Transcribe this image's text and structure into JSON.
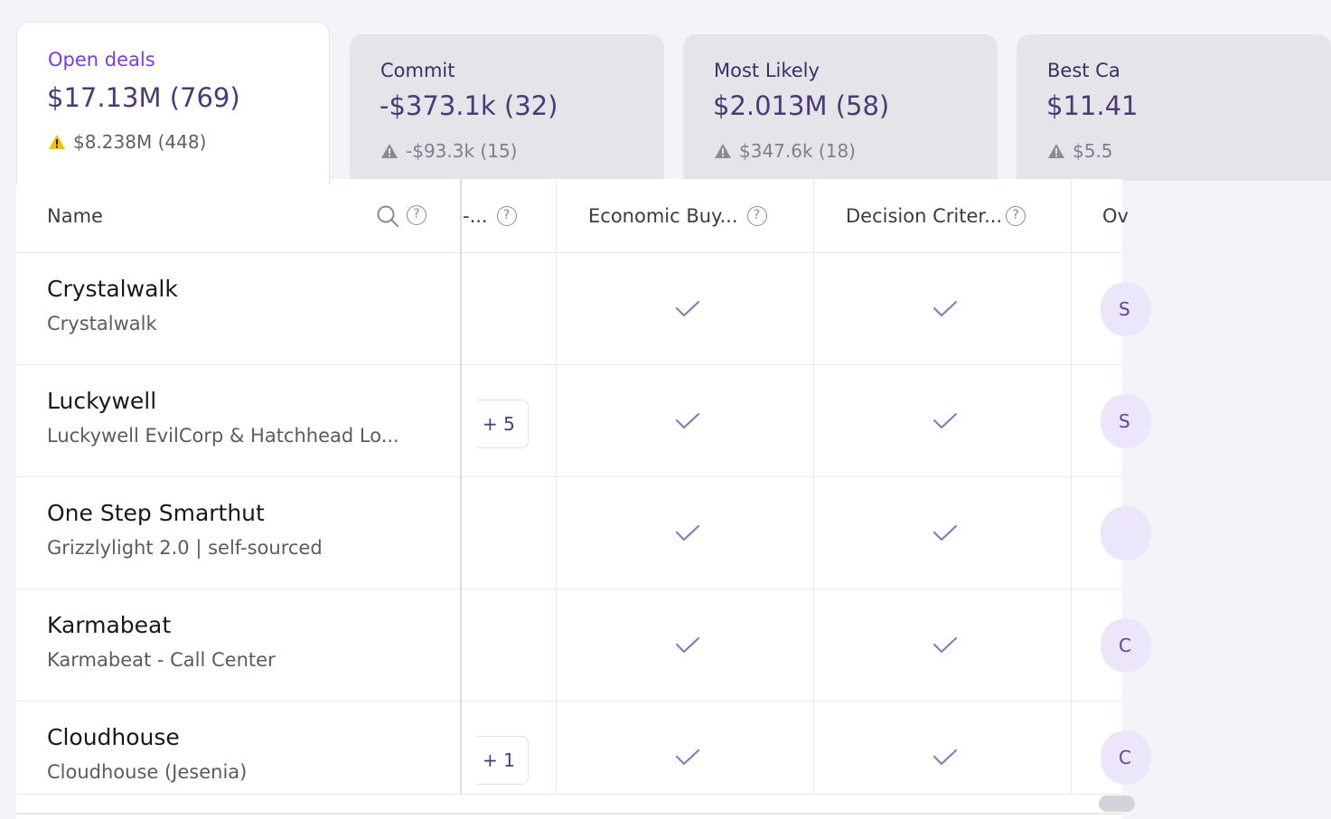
{
  "tabs": [
    {
      "title": "Open deals",
      "value": "$17.13M (769)",
      "warning": "$8.238M (448)"
    },
    {
      "title": "Commit",
      "value": "-$373.1k (32)",
      "warning": "-$93.3k (15)"
    },
    {
      "title": "Most Likely",
      "value": "$2.013M (58)",
      "warning": "$347.6k (18)"
    },
    {
      "title": "Best Ca",
      "value": "$11.41",
      "warning": "$5.5"
    }
  ],
  "table": {
    "headers": {
      "name": "Name",
      "col2": "-...",
      "col3": "Economic Buy...",
      "col4": "Decision Criter...",
      "col5": "Ov"
    },
    "help_symbol": "?",
    "rows": [
      {
        "name": "Crystalwalk",
        "sub": "Crystalwalk",
        "more": "",
        "owner": "S"
      },
      {
        "name": "Luckywell",
        "sub": "Luckywell EvilCorp & Hatchhead Lo...",
        "more": "+ 5",
        "owner": "S"
      },
      {
        "name": "One Step Smarthut",
        "sub": "Grizzlylight 2.0 | self-sourced",
        "more": "",
        "owner": ""
      },
      {
        "name": "Karmabeat",
        "sub": "Karmabeat - Call Center",
        "more": "",
        "owner": "C"
      },
      {
        "name": "Cloudhouse",
        "sub": "Cloudhouse (Jesenia)",
        "more": "+ 1",
        "owner": "C"
      }
    ]
  },
  "icons": {
    "warning": "warning-triangle-icon",
    "search": "search-icon",
    "help": "help-circle-icon",
    "check": "checkmark-icon"
  },
  "colors": {
    "accent": "#7c3aed",
    "value": "#4a3a78",
    "warning_active": "#f2c200",
    "warning_inactive": "#8a8a94",
    "check": "#8c7ab8"
  }
}
